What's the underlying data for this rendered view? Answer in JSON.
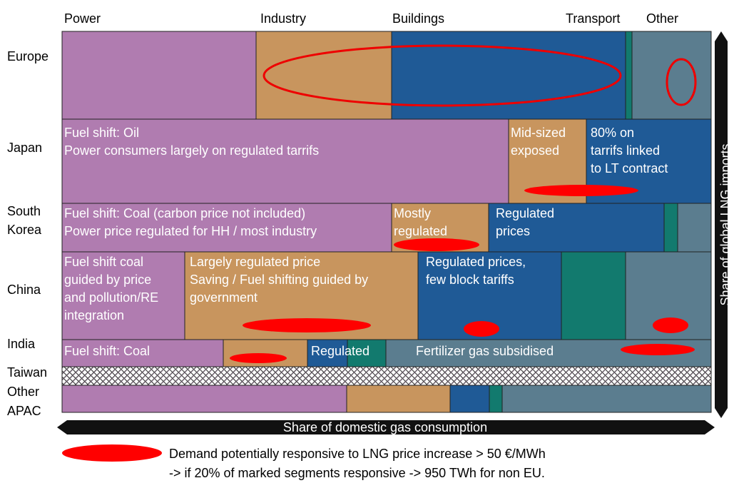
{
  "columns": [
    "Power",
    "Industry",
    "Buildings",
    "Transport",
    "Other"
  ],
  "rows": [
    {
      "label": [
        "Europe"
      ]
    },
    {
      "label": [
        "Japan"
      ],
      "cells": [
        [
          "Fuel shift: Oil",
          "Power consumers largely on regulated tarrifs"
        ],
        [
          "Mid-sized",
          "exposed"
        ],
        [
          "80% on",
          "tarrifs linked",
          "to LT contract"
        ]
      ]
    },
    {
      "label": [
        "South",
        "Korea"
      ],
      "cells": [
        [
          "Fuel shift: Coal (carbon price not included)",
          "Power price regulated for HH / most industry"
        ],
        [
          "Mostly",
          "regulated"
        ],
        [
          "Regulated",
          "prices"
        ]
      ]
    },
    {
      "label": [
        "China"
      ],
      "cells": [
        [
          "Fuel shift coal",
          "guided by price",
          "and pollution/RE",
          "integration"
        ],
        [
          "Largely regulated price",
          "Saving / Fuel shifting guided by",
          "government"
        ],
        [
          "Regulated prices,",
          "few block tariffs"
        ]
      ]
    },
    {
      "label": [
        "India"
      ],
      "cells": [
        [
          "Fuel shift: Coal"
        ],
        [
          "Regulated"
        ],
        [
          "Fertilizer gas subsidised"
        ]
      ]
    },
    {
      "label": [
        "Taiwan"
      ]
    },
    {
      "label": [
        "Other",
        "APAC"
      ]
    }
  ],
  "axes": {
    "y": "Share of global LNG imports",
    "x": "Share of domestic gas consumption"
  },
  "legend": [
    "Demand potentially responsive to LNG price increase > 50 €/MWh",
    "-> if 20% of marked segments responsive -> 950 TWh for non EU."
  ]
}
